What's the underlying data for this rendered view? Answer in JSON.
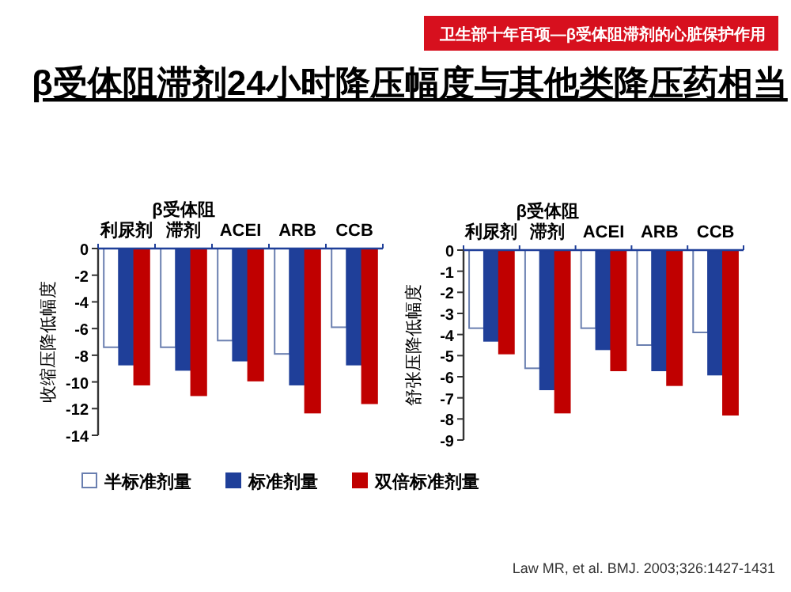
{
  "chart_data": [
    {
      "type": "bar",
      "title": "β受体阻滞剂24小时降压幅度与其他类降压药相当",
      "annotations": [
        "卫生部十年百项—β受体阻滞剂的心脏保护作用"
      ],
      "ylabel": "收缩压降低幅度",
      "categories": [
        "利尿剂",
        "β受体阻滞剂",
        "ACEI",
        "ARB",
        "CCB"
      ],
      "ylim": [
        -14,
        0
      ],
      "yticks": [
        0,
        -2,
        -4,
        -6,
        -8,
        -10,
        -12,
        -14
      ],
      "legend": "bottom",
      "grid": false,
      "series": [
        {
          "name": "半标准剂量",
          "color": "#ffffff",
          "values": [
            -7.4,
            -7.4,
            -6.9,
            -7.9,
            -5.9
          ]
        },
        {
          "name": "标准剂量",
          "color": "#1f3f99",
          "values": [
            -8.7,
            -9.1,
            -8.4,
            -10.2,
            -8.7
          ]
        },
        {
          "name": "双倍标准剂量",
          "color": "#c00000",
          "values": [
            -10.2,
            -11.0,
            -9.9,
            -12.3,
            -11.6
          ]
        }
      ]
    },
    {
      "type": "bar",
      "ylabel": "舒张压降低幅度",
      "annotations": [
        "Law MR, et al. BMJ. 2003;326:1427-1431"
      ],
      "categories": [
        "利尿剂",
        "β受体阻滞剂",
        "ACEI",
        "ARB",
        "CCB"
      ],
      "ylim": [
        -9,
        0
      ],
      "yticks": [
        0,
        -1,
        -2,
        -3,
        -4,
        -5,
        -6,
        -7,
        -8,
        -9
      ],
      "grid": false,
      "series": [
        {
          "color": "#ffffff",
          "values": [
            -3.7,
            -5.6,
            -3.7,
            -4.5,
            -3.9
          ]
        },
        {
          "color": "#1f3f99",
          "values": [
            -4.3,
            -6.6,
            -4.7,
            -5.7,
            -5.9
          ]
        },
        {
          "color": "#c00000",
          "values": [
            -4.9,
            -7.7,
            -5.7,
            -6.4,
            -7.8
          ]
        }
      ]
    }
  ]
}
